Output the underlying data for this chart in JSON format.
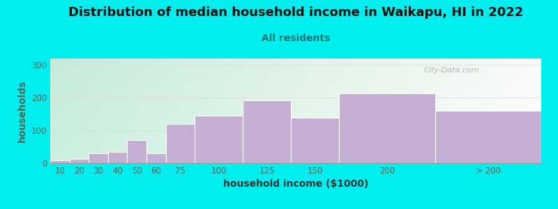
{
  "title": "Distribution of median household income in Waikapu, HI in 2022",
  "subtitle": "All residents",
  "xlabel": "household income ($1000)",
  "ylabel": "households",
  "background_color": "#00eeee",
  "bar_color": "#c4aed4",
  "bar_edge_color": "#ffffff",
  "categories": [
    "10",
    "20",
    "30",
    "40",
    "50",
    "60",
    "75",
    "100",
    "125",
    "150",
    "200",
    "> 200"
  ],
  "values": [
    8,
    13,
    30,
    35,
    70,
    30,
    120,
    145,
    193,
    138,
    213,
    160
  ],
  "ylim": [
    0,
    320
  ],
  "yticks": [
    0,
    100,
    200,
    300
  ],
  "title_fontsize": 13,
  "subtitle_fontsize": 10,
  "axis_label_fontsize": 10,
  "tick_fontsize": 8.5,
  "ylabel_color": "#556655",
  "xlabel_color": "#333333",
  "tick_color": "#556655",
  "watermark_text": "City-Data.com",
  "watermark_color": "#aaaaaa",
  "grid_color": "#dddddd",
  "x_positions": [
    0,
    10,
    20,
    30,
    40,
    50,
    60,
    75,
    100,
    125,
    150,
    200
  ],
  "bar_widths": [
    10,
    10,
    10,
    10,
    10,
    10,
    15,
    25,
    25,
    25,
    50,
    55
  ],
  "xlim": [
    0,
    255
  ],
  "x_tick_positions": [
    5,
    15,
    25,
    35,
    45,
    55,
    67.5,
    87.5,
    112.5,
    137.5,
    175,
    227.5
  ],
  "x_tick_labels": [
    "10",
    "20",
    "30",
    "40",
    "50",
    "60",
    "75",
    "100",
    "125",
    "150",
    "200",
    "> 200"
  ]
}
